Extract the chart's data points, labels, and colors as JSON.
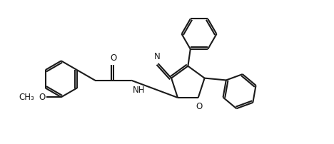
{
  "bg_color": "#ffffff",
  "line_color": "#1a1a1a",
  "line_width": 1.5,
  "font_size": 8.5,
  "fig_width": 4.68,
  "fig_height": 2.02,
  "dpi": 100,
  "xlim": [
    0,
    9.5
  ],
  "ylim": [
    0,
    4.1
  ]
}
